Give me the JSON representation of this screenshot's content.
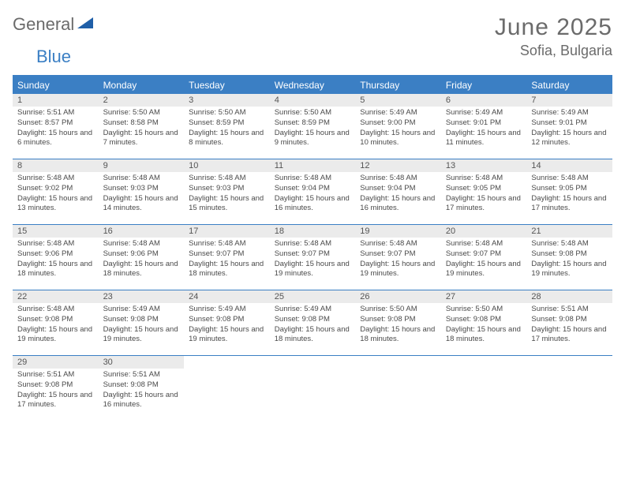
{
  "logo": {
    "general": "General",
    "blue": "Blue"
  },
  "title": "June 2025",
  "location": "Sofia, Bulgaria",
  "weekdays": [
    "Sunday",
    "Monday",
    "Tuesday",
    "Wednesday",
    "Thursday",
    "Friday",
    "Saturday"
  ],
  "colors": {
    "accent": "#3b7fc4",
    "weekday_bg": "#3b7fc4",
    "weekday_text": "#ffffff",
    "daynum_bg": "#ebebeb",
    "text": "#4a4a4a",
    "title_text": "#6b6b6b"
  },
  "layout": {
    "cols": 7,
    "rows": 5
  },
  "days": [
    {
      "n": "1",
      "sr": "Sunrise: 5:51 AM",
      "ss": "Sunset: 8:57 PM",
      "dl": "Daylight: 15 hours and 6 minutes."
    },
    {
      "n": "2",
      "sr": "Sunrise: 5:50 AM",
      "ss": "Sunset: 8:58 PM",
      "dl": "Daylight: 15 hours and 7 minutes."
    },
    {
      "n": "3",
      "sr": "Sunrise: 5:50 AM",
      "ss": "Sunset: 8:59 PM",
      "dl": "Daylight: 15 hours and 8 minutes."
    },
    {
      "n": "4",
      "sr": "Sunrise: 5:50 AM",
      "ss": "Sunset: 8:59 PM",
      "dl": "Daylight: 15 hours and 9 minutes."
    },
    {
      "n": "5",
      "sr": "Sunrise: 5:49 AM",
      "ss": "Sunset: 9:00 PM",
      "dl": "Daylight: 15 hours and 10 minutes."
    },
    {
      "n": "6",
      "sr": "Sunrise: 5:49 AM",
      "ss": "Sunset: 9:01 PM",
      "dl": "Daylight: 15 hours and 11 minutes."
    },
    {
      "n": "7",
      "sr": "Sunrise: 5:49 AM",
      "ss": "Sunset: 9:01 PM",
      "dl": "Daylight: 15 hours and 12 minutes."
    },
    {
      "n": "8",
      "sr": "Sunrise: 5:48 AM",
      "ss": "Sunset: 9:02 PM",
      "dl": "Daylight: 15 hours and 13 minutes."
    },
    {
      "n": "9",
      "sr": "Sunrise: 5:48 AM",
      "ss": "Sunset: 9:03 PM",
      "dl": "Daylight: 15 hours and 14 minutes."
    },
    {
      "n": "10",
      "sr": "Sunrise: 5:48 AM",
      "ss": "Sunset: 9:03 PM",
      "dl": "Daylight: 15 hours and 15 minutes."
    },
    {
      "n": "11",
      "sr": "Sunrise: 5:48 AM",
      "ss": "Sunset: 9:04 PM",
      "dl": "Daylight: 15 hours and 16 minutes."
    },
    {
      "n": "12",
      "sr": "Sunrise: 5:48 AM",
      "ss": "Sunset: 9:04 PM",
      "dl": "Daylight: 15 hours and 16 minutes."
    },
    {
      "n": "13",
      "sr": "Sunrise: 5:48 AM",
      "ss": "Sunset: 9:05 PM",
      "dl": "Daylight: 15 hours and 17 minutes."
    },
    {
      "n": "14",
      "sr": "Sunrise: 5:48 AM",
      "ss": "Sunset: 9:05 PM",
      "dl": "Daylight: 15 hours and 17 minutes."
    },
    {
      "n": "15",
      "sr": "Sunrise: 5:48 AM",
      "ss": "Sunset: 9:06 PM",
      "dl": "Daylight: 15 hours and 18 minutes."
    },
    {
      "n": "16",
      "sr": "Sunrise: 5:48 AM",
      "ss": "Sunset: 9:06 PM",
      "dl": "Daylight: 15 hours and 18 minutes."
    },
    {
      "n": "17",
      "sr": "Sunrise: 5:48 AM",
      "ss": "Sunset: 9:07 PM",
      "dl": "Daylight: 15 hours and 18 minutes."
    },
    {
      "n": "18",
      "sr": "Sunrise: 5:48 AM",
      "ss": "Sunset: 9:07 PM",
      "dl": "Daylight: 15 hours and 19 minutes."
    },
    {
      "n": "19",
      "sr": "Sunrise: 5:48 AM",
      "ss": "Sunset: 9:07 PM",
      "dl": "Daylight: 15 hours and 19 minutes."
    },
    {
      "n": "20",
      "sr": "Sunrise: 5:48 AM",
      "ss": "Sunset: 9:07 PM",
      "dl": "Daylight: 15 hours and 19 minutes."
    },
    {
      "n": "21",
      "sr": "Sunrise: 5:48 AM",
      "ss": "Sunset: 9:08 PM",
      "dl": "Daylight: 15 hours and 19 minutes."
    },
    {
      "n": "22",
      "sr": "Sunrise: 5:48 AM",
      "ss": "Sunset: 9:08 PM",
      "dl": "Daylight: 15 hours and 19 minutes."
    },
    {
      "n": "23",
      "sr": "Sunrise: 5:49 AM",
      "ss": "Sunset: 9:08 PM",
      "dl": "Daylight: 15 hours and 19 minutes."
    },
    {
      "n": "24",
      "sr": "Sunrise: 5:49 AM",
      "ss": "Sunset: 9:08 PM",
      "dl": "Daylight: 15 hours and 19 minutes."
    },
    {
      "n": "25",
      "sr": "Sunrise: 5:49 AM",
      "ss": "Sunset: 9:08 PM",
      "dl": "Daylight: 15 hours and 18 minutes."
    },
    {
      "n": "26",
      "sr": "Sunrise: 5:50 AM",
      "ss": "Sunset: 9:08 PM",
      "dl": "Daylight: 15 hours and 18 minutes."
    },
    {
      "n": "27",
      "sr": "Sunrise: 5:50 AM",
      "ss": "Sunset: 9:08 PM",
      "dl": "Daylight: 15 hours and 18 minutes."
    },
    {
      "n": "28",
      "sr": "Sunrise: 5:51 AM",
      "ss": "Sunset: 9:08 PM",
      "dl": "Daylight: 15 hours and 17 minutes."
    },
    {
      "n": "29",
      "sr": "Sunrise: 5:51 AM",
      "ss": "Sunset: 9:08 PM",
      "dl": "Daylight: 15 hours and 17 minutes."
    },
    {
      "n": "30",
      "sr": "Sunrise: 5:51 AM",
      "ss": "Sunset: 9:08 PM",
      "dl": "Daylight: 15 hours and 16 minutes."
    }
  ]
}
